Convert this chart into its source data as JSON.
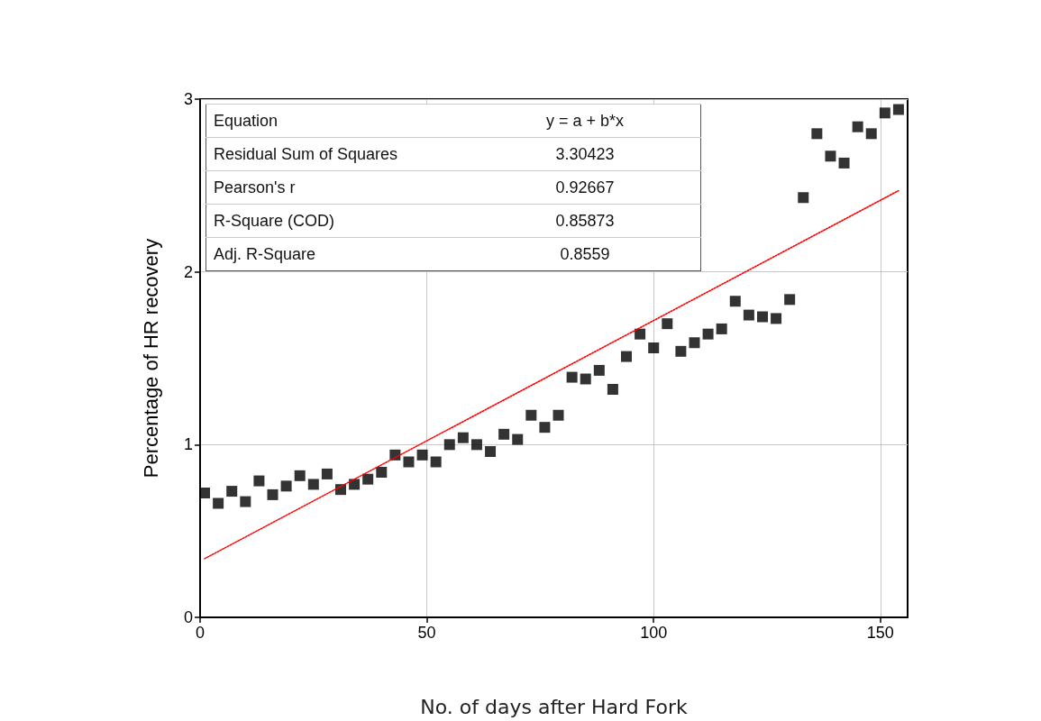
{
  "chart_data": {
    "type": "scatter",
    "xlabel": "No. of days after Hard Fork",
    "ylabel": "Percentage of HR recovery",
    "xlim": [
      0,
      156
    ],
    "xticks": [
      0,
      50,
      100,
      150
    ],
    "ylim": [
      0,
      3
    ],
    "yticks": [
      0,
      1,
      2,
      3
    ],
    "grid": true,
    "marker": "square",
    "annotations": [
      "Equation",
      "y = a + b*x",
      "Residual Sum of Squares",
      "3.30423",
      "Pearson's r",
      "0.92667",
      "R-Square (COD)",
      "0.85873",
      "Adj. R-Square",
      "0.8559"
    ],
    "series": [
      {
        "color": "#000000",
        "x": [
          1,
          4,
          7,
          10,
          13,
          16,
          19,
          22,
          25,
          28,
          31,
          34,
          37,
          40,
          43,
          46,
          49,
          52,
          55,
          58,
          61,
          64,
          67,
          70,
          73,
          76,
          79,
          82,
          85,
          88,
          91,
          94,
          97,
          100,
          103,
          106,
          109,
          112,
          115,
          118,
          121,
          124,
          127,
          130,
          133,
          136,
          139,
          142,
          145,
          148,
          151,
          154
        ],
        "values": [
          0.72,
          0.66,
          0.73,
          0.67,
          0.79,
          0.71,
          0.76,
          0.82,
          0.77,
          0.83,
          0.74,
          0.77,
          0.8,
          0.84,
          0.94,
          0.9,
          0.94,
          0.9,
          1.0,
          1.04,
          1.0,
          0.96,
          1.06,
          1.03,
          1.17,
          1.1,
          1.17,
          1.39,
          1.38,
          1.43,
          1.32,
          1.51,
          1.64,
          1.56,
          1.7,
          1.54,
          1.59,
          1.64,
          1.67,
          1.83,
          1.75,
          1.74,
          1.73,
          1.84,
          2.43,
          2.8,
          2.67,
          2.63,
          2.84,
          2.8,
          2.92,
          2.94
        ]
      },
      {
        "type": "line",
        "color": "#ff0000",
        "line_style": "dotted",
        "marker": "none",
        "x": [
          1,
          154
        ],
        "values": [
          0.34,
          2.47
        ]
      }
    ]
  }
}
